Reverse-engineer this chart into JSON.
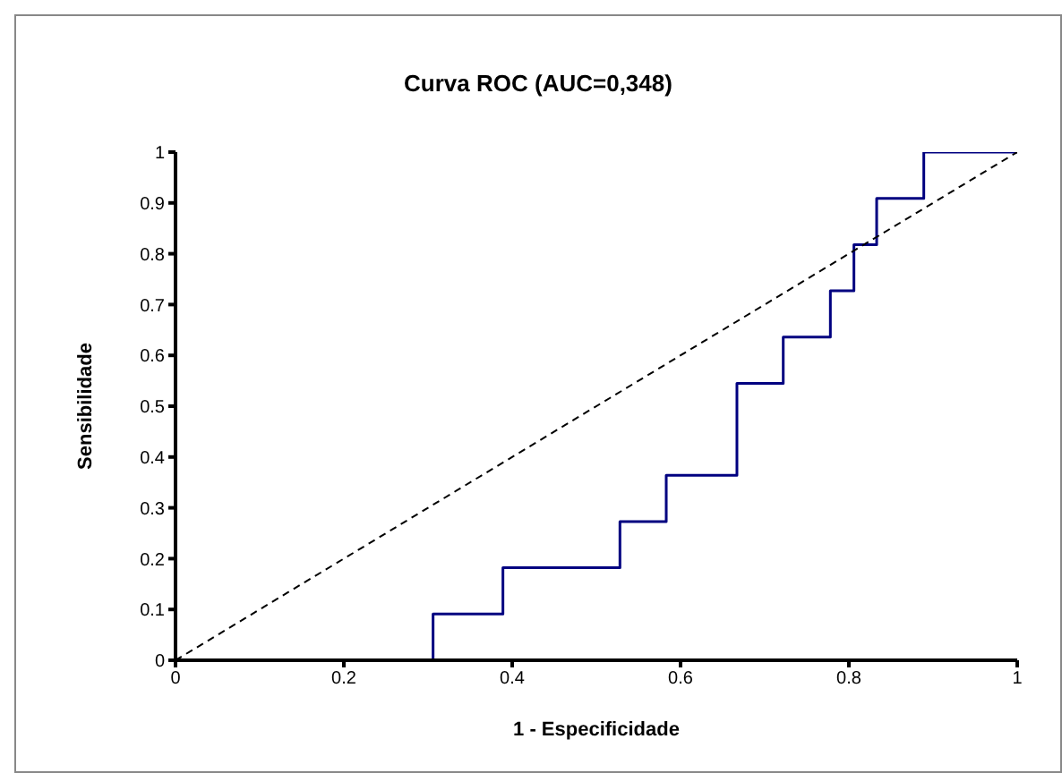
{
  "chart_data": {
    "type": "step",
    "title": "Curva ROC (AUC=0,348)",
    "xlabel": "1 - Especificidade",
    "ylabel": "Sensibilidade",
    "series": [
      {
        "color": "#000080",
        "line_style": "solid",
        "x": [
          0,
          0.306,
          0.389,
          0.528,
          0.583,
          0.667,
          0.722,
          0.778,
          0.806,
          0.833,
          0.889,
          1
        ],
        "values": [
          0,
          0.091,
          0.182,
          0.273,
          0.364,
          0.545,
          0.636,
          0.727,
          0.818,
          0.909,
          1,
          1
        ]
      },
      {
        "type": "line",
        "color": "#000000",
        "line_style": "dashed",
        "x": [
          0,
          1
        ],
        "values": [
          0,
          1
        ]
      }
    ],
    "xlim": [
      0,
      1
    ],
    "xticks": [
      0,
      0.2,
      0.4,
      0.6,
      0.8,
      1
    ],
    "ylim": [
      0,
      1
    ],
    "yticks": [
      0,
      0.1,
      0.2,
      0.3,
      0.4,
      0.5,
      0.6,
      0.7,
      0.8,
      0.9,
      1
    ],
    "grid": false,
    "legend": false,
    "marker": "none"
  }
}
